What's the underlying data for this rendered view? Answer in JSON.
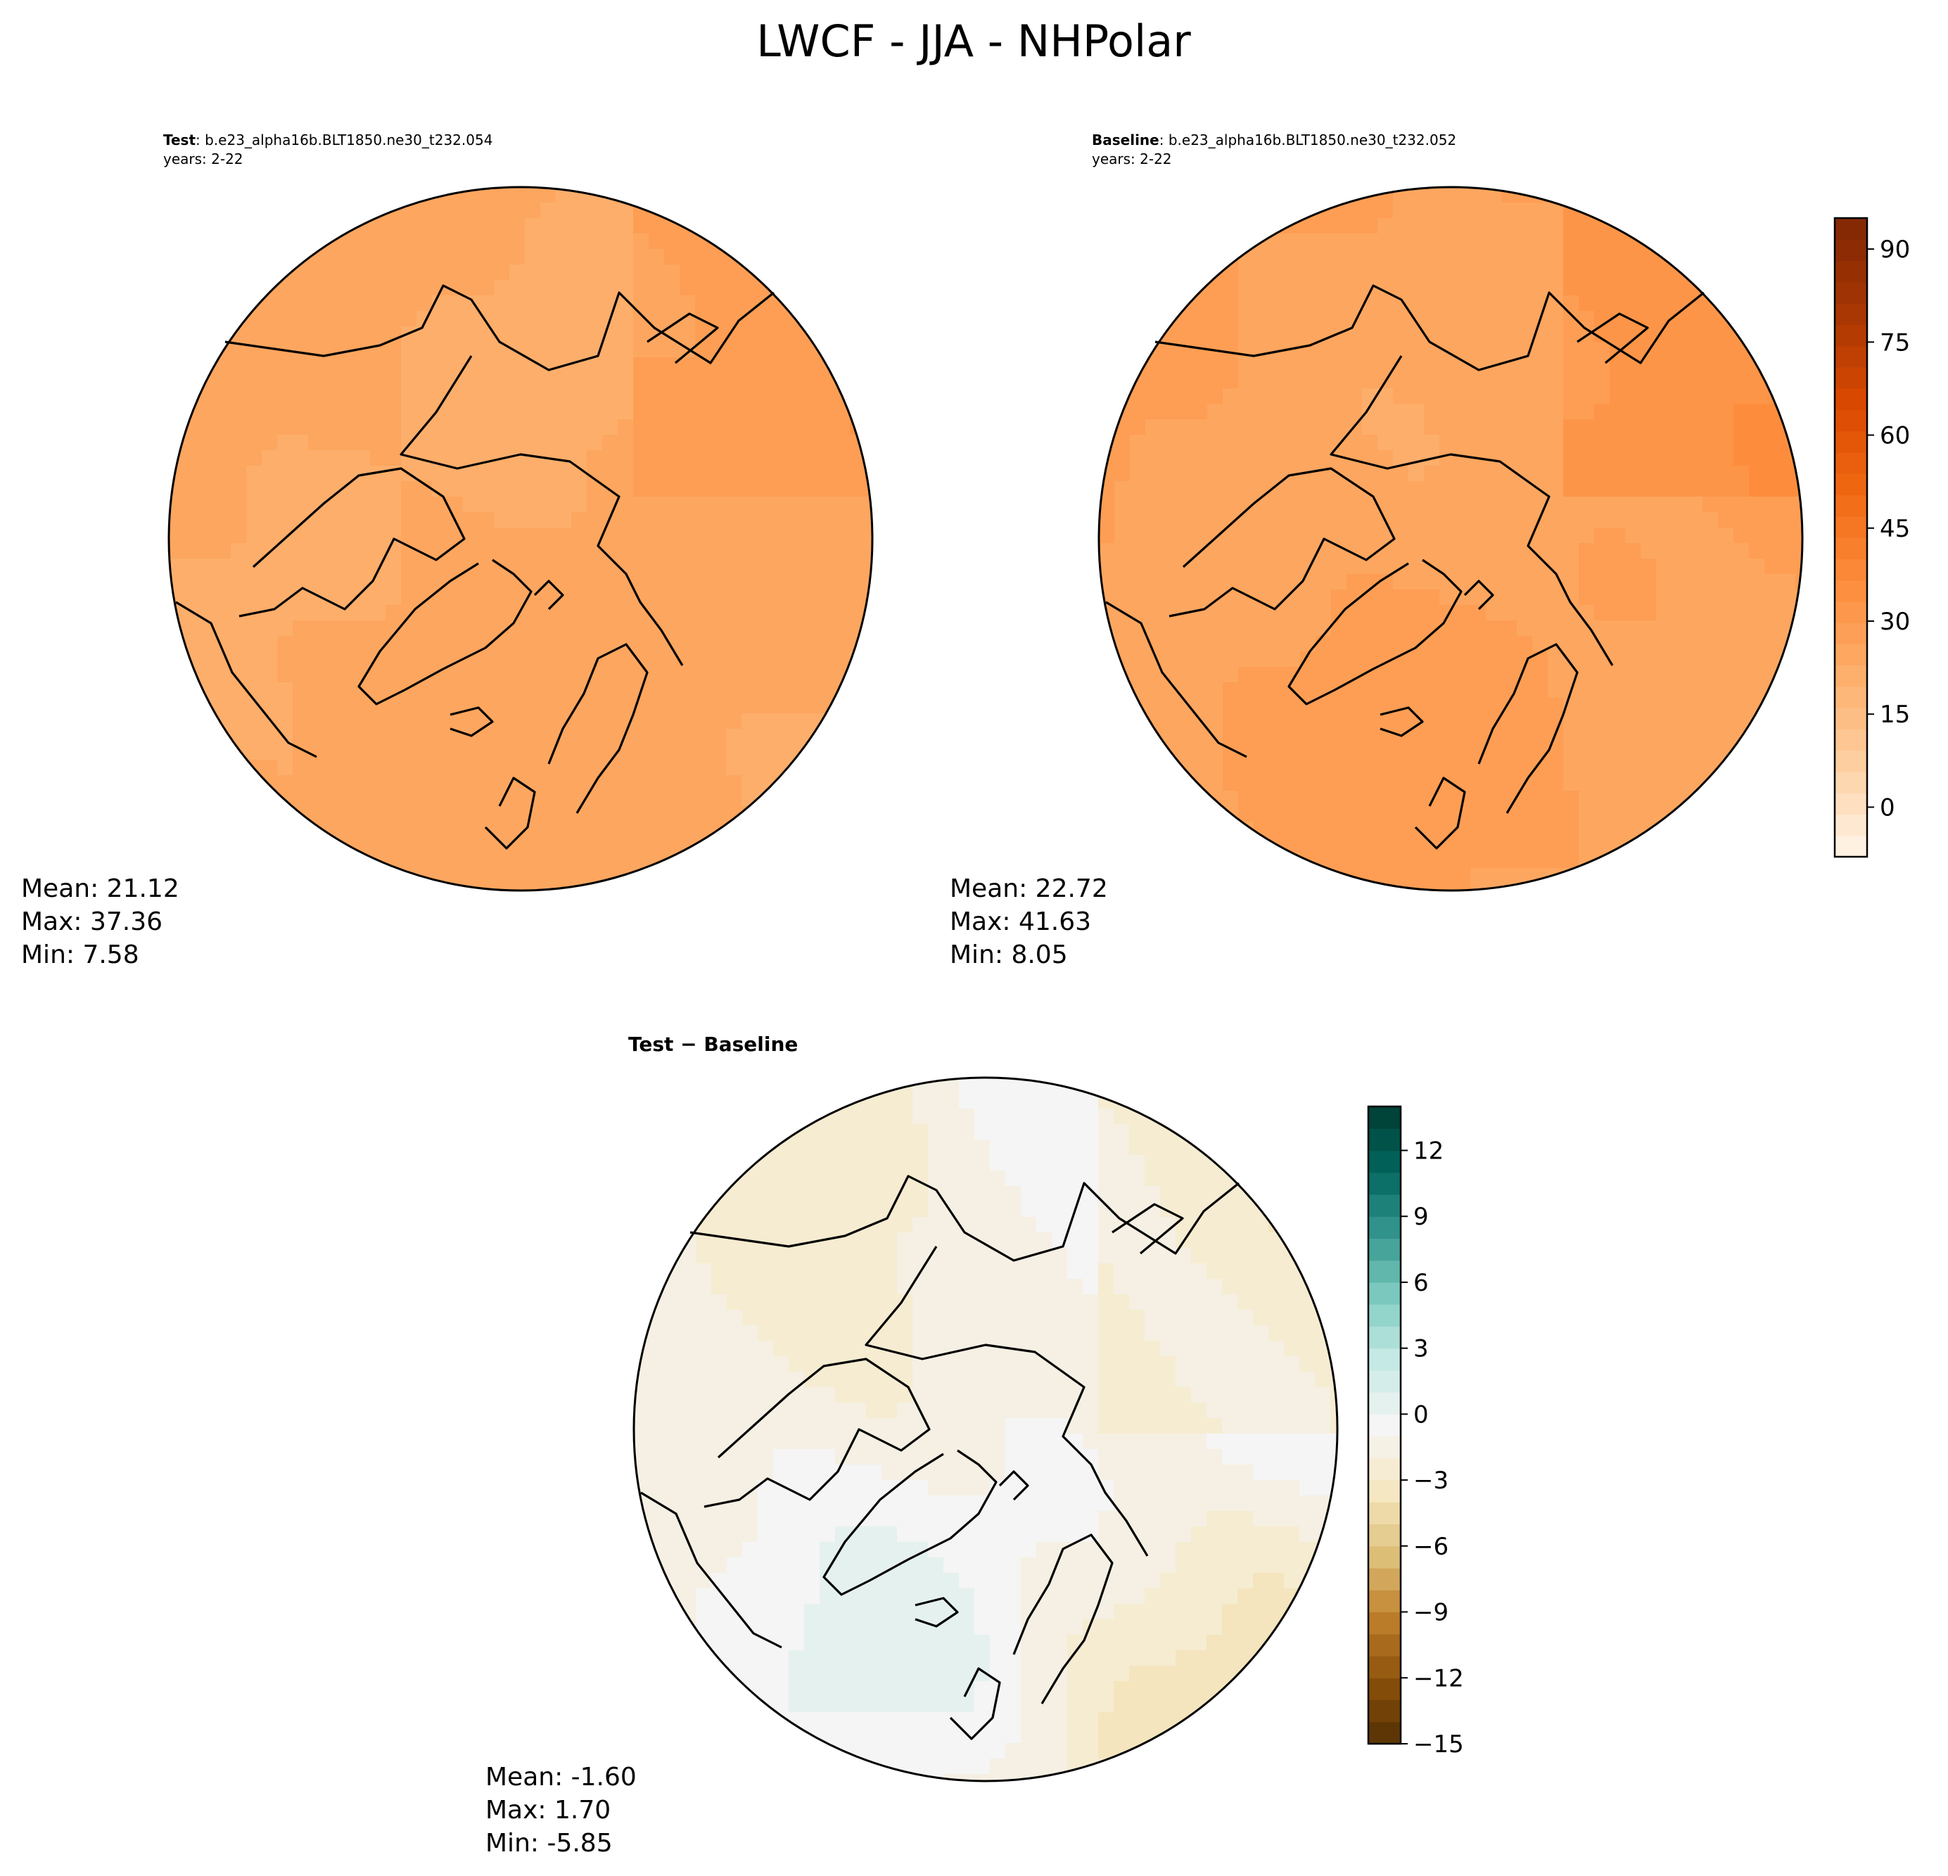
{
  "title": "LWCF - JJA - NHPolar",
  "panels": [
    {
      "label_bold": "Test",
      "label_rest": ": b.e23_alpha16b.BLT1850.ne30_t232.054",
      "years": "years: 2-22",
      "stats": {
        "mean": "Mean: 21.12",
        "max": "Max: 37.36",
        "min": "Min:  7.58"
      },
      "field": {
        "base": 23,
        "amp": 10
      }
    },
    {
      "label_bold": "Baseline",
      "label_rest": ": b.e23_alpha16b.BLT1850.ne30_t232.052",
      "years": "years: 2-22",
      "stats": {
        "mean": "Mean: 22.72",
        "max": "Max: 41.63",
        "min": "Min:  8.05"
      },
      "field": {
        "base": 25,
        "amp": 12
      }
    },
    {
      "label_bold": "Test − Baseline",
      "label_rest": "",
      "years": "",
      "stats": {
        "mean": "Mean: -1.60",
        "max": "Max:  1.70",
        "min": "Min: -5.85"
      },
      "field": {
        "base": -1.6,
        "amp": 2.2
      }
    }
  ],
  "colorbar_main": {
    "range": [
      -8,
      95
    ],
    "ticks": [
      "90",
      "75",
      "60",
      "45",
      "30",
      "15",
      "0"
    ],
    "tick_values": [
      90,
      75,
      60,
      45,
      30,
      15,
      0
    ],
    "colors": [
      "#fff5eb",
      "#fdd0a2",
      "#fdae6b",
      "#fd8d3c",
      "#f16913",
      "#d94801",
      "#a63603",
      "#7f2704"
    ]
  },
  "colorbar_diff": {
    "range": [
      -15,
      14
    ],
    "ticks": [
      "12",
      "9",
      "6",
      "3",
      "0",
      "−3",
      "−6",
      "−9",
      "−12",
      "−15"
    ],
    "tick_values": [
      12,
      9,
      6,
      3,
      0,
      -3,
      -6,
      -9,
      -12,
      -15
    ],
    "colors": [
      "#543005",
      "#8c510a",
      "#bf812d",
      "#dfc27d",
      "#f6e8c3",
      "#f5f5f5",
      "#c7eae5",
      "#80cdc1",
      "#35978f",
      "#01665e",
      "#003c30"
    ]
  }
}
